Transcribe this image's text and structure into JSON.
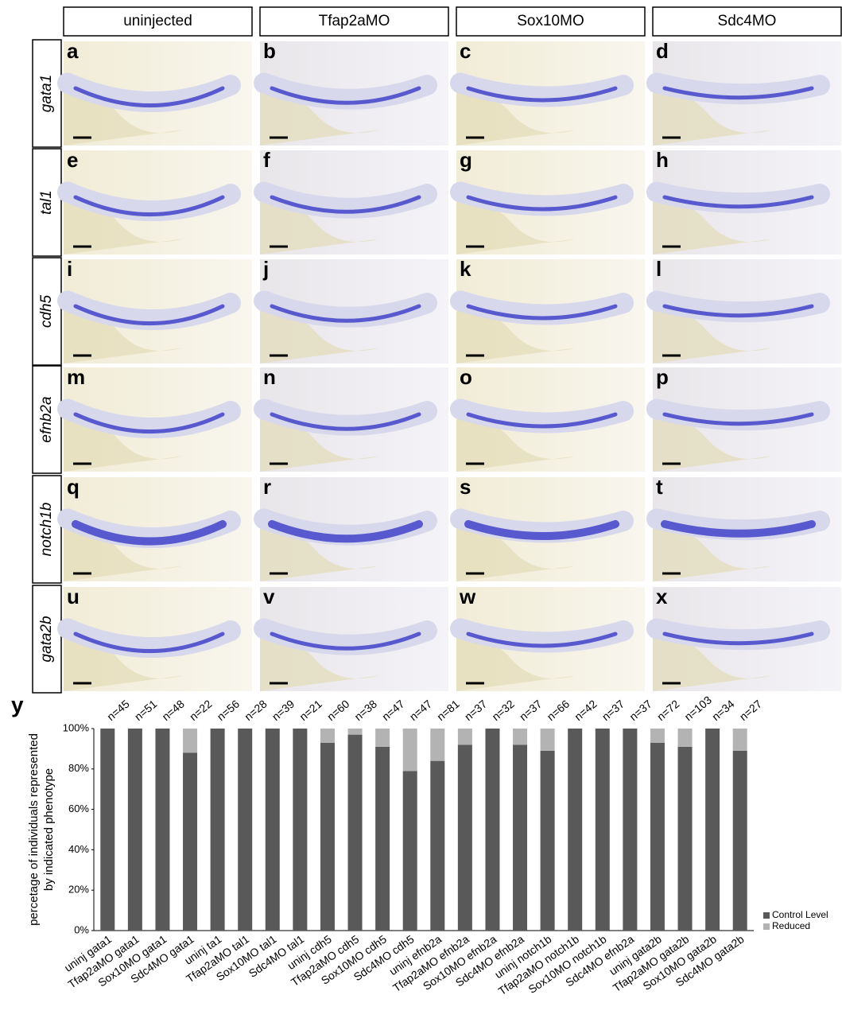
{
  "columns": [
    "uninjected",
    "Tfap2aMO",
    "Sox10MO",
    "Sdc4MO"
  ],
  "rows": [
    "gata1",
    "tal1",
    "cdh5",
    "efnb2a",
    "notch1b",
    "gata2b"
  ],
  "panel_letters": [
    "a",
    "b",
    "c",
    "d",
    "e",
    "f",
    "g",
    "h",
    "i",
    "j",
    "k",
    "l",
    "m",
    "n",
    "o",
    "p",
    "q",
    "r",
    "s",
    "t",
    "u",
    "v",
    "w",
    "x"
  ],
  "chart_data": {
    "type": "bar",
    "stacked": true,
    "panel_letter": "y",
    "categories": [
      "uninj gata1",
      "Tfap2aMO gata1",
      "Sox10MO gata1",
      "Sdc4MO gata1",
      "uninj ta1",
      "Tfap2aMO tal1",
      "Sox10MO tal1",
      "Sdc4MO tal1",
      "uninj cdh5",
      "Tfap2aMO cdh5",
      "Sox10MO cdh5",
      "Sdc4MO cdh5",
      "uninj efnb2a",
      "Tfap2aMO efnb2a",
      "Sox10MO efnb2a",
      "Sdc4MO efnb2a",
      "uninj notch1b",
      "Tfap2aMO notch1b",
      "Sox10MO notch1b",
      "Sdc4MO efnb2a",
      "uninj gata2b",
      "Tfap2aMO gata2b",
      "Sox10MO gata2b",
      "Sdc4MO gata2b"
    ],
    "series": [
      {
        "name": "Control Level",
        "color": "#595959",
        "values": [
          100,
          100,
          100,
          88,
          100,
          100,
          100,
          100,
          93,
          97,
          91,
          79,
          84,
          92,
          100,
          92,
          89,
          100,
          100,
          100,
          93,
          91,
          100,
          89
        ]
      },
      {
        "name": "Reduced",
        "color": "#b3b3b3",
        "values": [
          0,
          0,
          0,
          12,
          0,
          0,
          0,
          0,
          7,
          3,
          9,
          21,
          16,
          8,
          0,
          8,
          11,
          0,
          0,
          0,
          7,
          9,
          0,
          11
        ]
      }
    ],
    "n_labels": [
      "n=45",
      "n=51",
      "n=48",
      "n=22",
      "n=56",
      "n=28",
      "n=39",
      "n=21",
      "n=60",
      "n=38",
      "n=47",
      "n=47",
      "n=81",
      "n=37",
      "n=32",
      "n=37",
      "n=66",
      "n=42",
      "n=37",
      "n=37",
      "n=72",
      "n=103",
      "n=34",
      "n=27"
    ],
    "y_label": [
      "percetage of individuals represented",
      "by indicated phenotype"
    ],
    "ylim": [
      0,
      100
    ],
    "yticks": [
      {
        "value": 0,
        "label": "0%"
      },
      {
        "value": 20,
        "label": "20%"
      },
      {
        "value": 40,
        "label": "40%"
      },
      {
        "value": 60,
        "label": "60%"
      },
      {
        "value": 80,
        "label": "80%"
      },
      {
        "value": 100,
        "label": "100%"
      }
    ],
    "legend": "lower right"
  }
}
